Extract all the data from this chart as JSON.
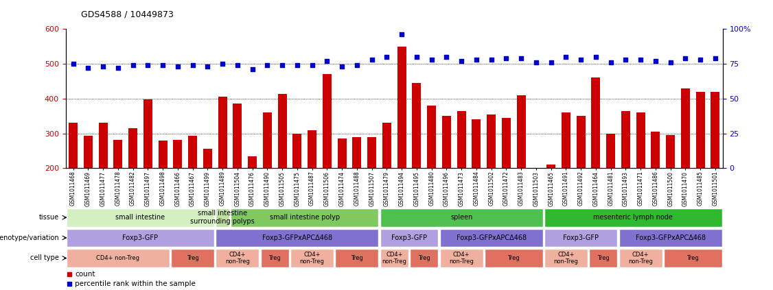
{
  "title": "GDS4588 / 10449873",
  "samples": [
    "GSM1011468",
    "GSM1011469",
    "GSM1011477",
    "GSM1011478",
    "GSM1011482",
    "GSM1011497",
    "GSM1011498",
    "GSM1011466",
    "GSM1011467",
    "GSM1011499",
    "GSM1011489",
    "GSM1011504",
    "GSM1011476",
    "GSM1011490",
    "GSM1011505",
    "GSM1011475",
    "GSM1011487",
    "GSM1011506",
    "GSM1011474",
    "GSM1011488",
    "GSM1011507",
    "GSM1011479",
    "GSM1011494",
    "GSM1011495",
    "GSM1011480",
    "GSM1011496",
    "GSM1011473",
    "GSM1011484",
    "GSM1011502",
    "GSM1011472",
    "GSM1011483",
    "GSM1011503",
    "GSM1011465",
    "GSM1011491",
    "GSM1011492",
    "GSM1011464",
    "GSM1011481",
    "GSM1011493",
    "GSM1011471",
    "GSM1011486",
    "GSM1011500",
    "GSM1011470",
    "GSM1011485",
    "GSM1011501"
  ],
  "counts": [
    330,
    293,
    330,
    282,
    315,
    398,
    280,
    282,
    293,
    256,
    405,
    386,
    235,
    360,
    413,
    300,
    310,
    471,
    285,
    290,
    290,
    330,
    550,
    445,
    380,
    350,
    365,
    340,
    355,
    345,
    410,
    200,
    210,
    360,
    350,
    460,
    300,
    365,
    360,
    305,
    295,
    430,
    420,
    420
  ],
  "percentiles": [
    75,
    72,
    73,
    72,
    74,
    74,
    74,
    73,
    74,
    73,
    75,
    74,
    71,
    74,
    74,
    74,
    74,
    77,
    73,
    74,
    78,
    80,
    96,
    80,
    78,
    80,
    77,
    78,
    78,
    79,
    79,
    76,
    76,
    80,
    78,
    80,
    76,
    78,
    78,
    77,
    76,
    79,
    78,
    79
  ],
  "bar_color": "#cc0000",
  "dot_color": "#0000cc",
  "left_ylim": [
    200,
    600
  ],
  "left_yticks": [
    200,
    300,
    400,
    500,
    600
  ],
  "right_ylim": [
    0,
    100
  ],
  "right_yticks": [
    0,
    25,
    50,
    75,
    100
  ],
  "right_yticklabels": [
    "0",
    "25",
    "50",
    "75",
    "100%"
  ],
  "hlines_pct": [
    25,
    50,
    75
  ],
  "tick_bg_color": "#d8d8d8",
  "tissue_groups": [
    {
      "label": "small intestine",
      "start": 0,
      "end": 9,
      "color": "#d4f0c0"
    },
    {
      "label": "small intestine\nsurrounding polyps",
      "start": 10,
      "end": 10,
      "color": "#c0e0a0"
    },
    {
      "label": "small intestine polyp",
      "start": 11,
      "end": 20,
      "color": "#80c860"
    },
    {
      "label": "spleen",
      "start": 21,
      "end": 31,
      "color": "#50c050"
    },
    {
      "label": "mesenteric lymph node",
      "start": 32,
      "end": 43,
      "color": "#30b830"
    }
  ],
  "genotype_groups": [
    {
      "label": "Foxp3-GFP",
      "start": 0,
      "end": 9,
      "color": "#b0a0e0"
    },
    {
      "label": "Foxp3-GFPxAPCΔ468",
      "start": 10,
      "end": 20,
      "color": "#8070d0"
    },
    {
      "label": "Foxp3-GFP",
      "start": 21,
      "end": 24,
      "color": "#b0a0e0"
    },
    {
      "label": "Foxp3-GFPxAPCΔ468",
      "start": 25,
      "end": 31,
      "color": "#8070d0"
    },
    {
      "label": "Foxp3-GFP",
      "start": 32,
      "end": 36,
      "color": "#b0a0e0"
    },
    {
      "label": "Foxp3-GFPxAPCΔ468",
      "start": 37,
      "end": 43,
      "color": "#8070d0"
    }
  ],
  "celltype_groups": [
    {
      "label": "CD4+ non-Treg",
      "start": 0,
      "end": 6,
      "color": "#f0b0a0"
    },
    {
      "label": "Treg",
      "start": 7,
      "end": 9,
      "color": "#e07060"
    },
    {
      "label": "CD4+\nnon-Treg",
      "start": 10,
      "end": 12,
      "color": "#f0b0a0"
    },
    {
      "label": "Treg",
      "start": 13,
      "end": 14,
      "color": "#e07060"
    },
    {
      "label": "CD4+\nnon-Treg",
      "start": 15,
      "end": 17,
      "color": "#f0b0a0"
    },
    {
      "label": "Treg",
      "start": 18,
      "end": 20,
      "color": "#e07060"
    },
    {
      "label": "CD4+\nnon-Treg",
      "start": 21,
      "end": 22,
      "color": "#f0b0a0"
    },
    {
      "label": "Treg",
      "start": 23,
      "end": 24,
      "color": "#e07060"
    },
    {
      "label": "CD4+\nnon-Treg",
      "start": 25,
      "end": 27,
      "color": "#f0b0a0"
    },
    {
      "label": "Treg",
      "start": 28,
      "end": 31,
      "color": "#e07060"
    },
    {
      "label": "CD4+\nnon-Treg",
      "start": 32,
      "end": 34,
      "color": "#f0b0a0"
    },
    {
      "label": "Treg",
      "start": 35,
      "end": 36,
      "color": "#e07060"
    },
    {
      "label": "CD4+\nnon-Treg",
      "start": 37,
      "end": 39,
      "color": "#f0b0a0"
    },
    {
      "label": "Treg",
      "start": 40,
      "end": 43,
      "color": "#e07060"
    }
  ],
  "annot_row_labels": [
    "tissue",
    "genotype/variation",
    "cell type"
  ]
}
